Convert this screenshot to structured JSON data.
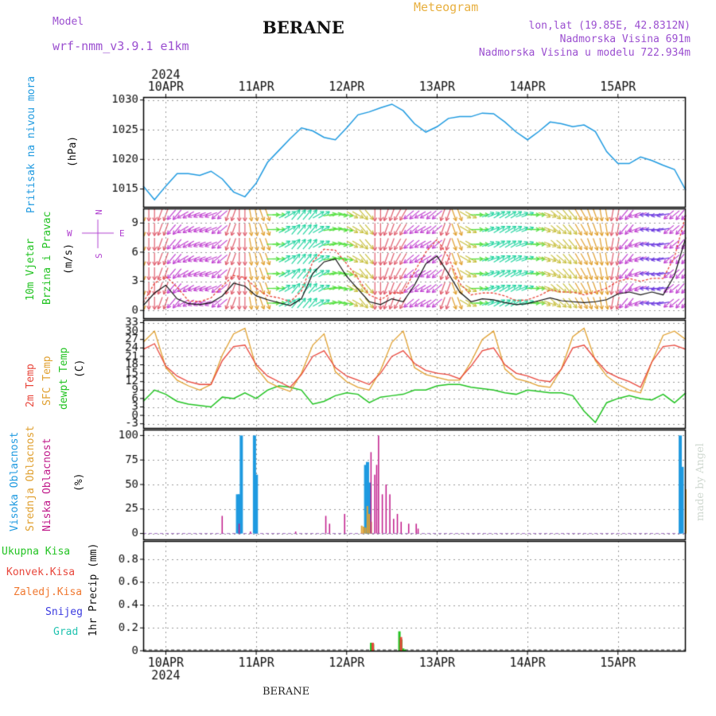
{
  "header": {
    "model_label": "Model",
    "model_name": "wrf-nmm_v3.9.1 e1km",
    "meteogram_label": "Meteogram",
    "station": "BERANE",
    "lonlat": "lon,lat (19.85E, 42.8312N)",
    "elevation": "Nadmorska Visina 691m",
    "model_elevation": "Nadmorska Visina u modelu 722.934m",
    "footer_station": "BERANE",
    "credit": "made by Angel"
  },
  "colors": {
    "pressure": "#1f9ae0",
    "temp2m": "#e8473c",
    "sfc_temp": "#e0a030",
    "dewpt": "#22c322",
    "cloud_high": "#1f9ae0",
    "cloud_mid": "#e0a030",
    "cloud_low": "#c01a8a",
    "wind_speed": "#111111",
    "wind_gust": "#e8473c",
    "precip_total": "#22c322",
    "precip_conv": "#e8473c",
    "precip_frozen": "#f07830",
    "precip_snow": "#3b3be0",
    "precip_graupel": "#22c3b0",
    "wind_axis": "#b040d0",
    "header_purple": "#9b4fd0",
    "header_orange": "#e8b040"
  },
  "time_axis": {
    "year": "2024",
    "days": [
      "10APR",
      "11APR",
      "12APR",
      "13APR",
      "14APR",
      "15APR"
    ],
    "hours_total": 144
  },
  "chart_data": [
    {
      "type": "line",
      "panel": "pressure",
      "ylabel": [
        "Pritisak na nivou mora",
        "(hPa)"
      ],
      "yticks": [
        1015,
        1020,
        1025,
        1030
      ],
      "ylim": [
        1012,
        1030.5
      ],
      "x_hours": [
        0,
        3,
        6,
        9,
        12,
        15,
        18,
        21,
        24,
        27,
        30,
        33,
        36,
        39,
        42,
        45,
        48,
        51,
        54,
        57,
        60,
        63,
        66,
        69,
        72,
        75,
        78,
        81,
        84,
        87,
        90,
        93,
        96,
        99,
        102,
        105,
        108,
        111,
        114,
        117,
        120,
        123,
        126,
        129,
        132,
        135,
        138,
        141,
        144
      ],
      "values": [
        1015.5,
        1013.2,
        1015.5,
        1017.6,
        1017.6,
        1017.3,
        1018.0,
        1016.7,
        1014.5,
        1013.7,
        1016.0,
        1019.5,
        1021.5,
        1023.5,
        1025.3,
        1024.8,
        1023.7,
        1023.3,
        1025.3,
        1027.5,
        1028.0,
        1028.7,
        1029.3,
        1028.2,
        1026.0,
        1024.6,
        1025.5,
        1026.9,
        1027.2,
        1027.2,
        1027.8,
        1027.7,
        1026.3,
        1024.6,
        1023.3,
        1024.7,
        1026.3,
        1026.0,
        1025.5,
        1025.8,
        1024.7,
        1021.3,
        1019.3,
        1019.3,
        1020.4,
        1019.8,
        1019.0,
        1018.3,
        1014.8
      ]
    },
    {
      "type": "line",
      "panel": "wind",
      "ylabel": [
        "10m Vjetar",
        "Brzina i Pravac",
        "(m/s)"
      ],
      "yticks": [
        0,
        3,
        6,
        9
      ],
      "ylim": [
        -0.8,
        10.5
      ],
      "direction_legend": [
        "N",
        "W",
        "E",
        "S"
      ],
      "x_hours": [
        0,
        3,
        6,
        9,
        12,
        15,
        18,
        21,
        24,
        27,
        30,
        33,
        36,
        39,
        42,
        45,
        48,
        51,
        54,
        57,
        60,
        63,
        66,
        69,
        72,
        75,
        78,
        81,
        84,
        87,
        90,
        93,
        96,
        99,
        102,
        105,
        108,
        111,
        114,
        117,
        120,
        123,
        126,
        129,
        132,
        135,
        138,
        141,
        144
      ],
      "series": [
        {
          "name": "speed",
          "values": [
            0.5,
            1.8,
            2.6,
            1.2,
            0.7,
            0.6,
            0.8,
            1.5,
            2.8,
            2.5,
            1.5,
            1.1,
            0.8,
            0.5,
            1.2,
            3.8,
            5.0,
            5.3,
            3.5,
            2.2,
            0.9,
            0.6,
            1.2,
            0.9,
            2.6,
            4.8,
            5.6,
            3.8,
            1.9,
            0.9,
            1.2,
            1.1,
            0.8,
            0.6,
            0.7,
            1.0,
            1.3,
            1.0,
            0.9,
            0.8,
            0.9,
            1.1,
            1.7,
            1.9,
            1.6,
            1.9,
            1.6,
            3.6,
            7.5
          ]
        },
        {
          "name": "gust",
          "values": [
            0.8,
            2.8,
            3.5,
            2.4,
            1.0,
            0.9,
            1.3,
            2.5,
            3.6,
            3.4,
            2.3,
            1.5,
            1.3,
            0.9,
            2.0,
            5.0,
            6.3,
            6.2,
            4.8,
            3.3,
            1.6,
            1.1,
            1.8,
            1.8,
            4.0,
            6.0,
            7.3,
            5.5,
            2.8,
            1.6,
            1.8,
            1.8,
            1.5,
            1.0,
            1.1,
            1.5,
            2.1,
            1.9,
            1.9,
            1.6,
            1.9,
            2.3,
            3.0,
            3.3,
            3.0,
            3.3,
            3.3,
            5.5,
            9.8
          ]
        }
      ],
      "direction_deg": [
        170,
        180,
        200,
        220,
        240,
        250,
        250,
        230,
        200,
        180,
        170,
        160,
        90,
        60,
        40,
        40,
        60,
        80,
        100,
        120,
        140,
        180,
        200,
        210,
        230,
        240,
        230,
        200,
        160,
        120,
        90,
        70,
        60,
        60,
        70,
        90,
        110,
        130,
        140,
        150,
        160,
        170,
        190,
        220,
        250,
        270,
        260,
        230,
        220
      ]
    },
    {
      "type": "line",
      "panel": "temperature",
      "ylabel": [
        "2m Temp",
        "SFC Temp",
        "dewpt Temp",
        "(C)"
      ],
      "yticks": [
        -3,
        0,
        3,
        6,
        9,
        12,
        15,
        18,
        21,
        24,
        27,
        30,
        33
      ],
      "ylim": [
        -4.5,
        34
      ],
      "x_hours": [
        0,
        3,
        6,
        9,
        12,
        15,
        18,
        21,
        24,
        27,
        30,
        33,
        36,
        39,
        42,
        45,
        48,
        51,
        54,
        57,
        60,
        63,
        66,
        69,
        72,
        75,
        78,
        81,
        84,
        87,
        90,
        93,
        96,
        99,
        102,
        105,
        108,
        111,
        114,
        117,
        120,
        123,
        126,
        129,
        132,
        135,
        138,
        141,
        144
      ],
      "series": [
        {
          "name": "2m Temp",
          "values": [
            23.5,
            25.5,
            17.5,
            14.0,
            12.0,
            11.0,
            11.0,
            19.5,
            24.5,
            25.0,
            18.0,
            14.0,
            12.0,
            10.0,
            14.5,
            21.0,
            23.0,
            17.0,
            14.0,
            12.5,
            11.0,
            15.0,
            21.0,
            23.0,
            18.5,
            16.0,
            15.0,
            14.5,
            13.0,
            17.5,
            23.0,
            24.0,
            18.0,
            15.0,
            14.0,
            12.5,
            12.0,
            16.5,
            24.0,
            25.0,
            20.0,
            15.5,
            13.5,
            12.0,
            10.0,
            19.0,
            24.5,
            25.0,
            23.5
          ]
        },
        {
          "name": "SFC Temp",
          "values": [
            26.0,
            30.0,
            17.0,
            12.5,
            10.5,
            9.0,
            11.0,
            21.5,
            29.0,
            31.0,
            17.0,
            12.0,
            10.0,
            8.5,
            15.0,
            25.0,
            29.0,
            15.5,
            12.0,
            10.0,
            9.0,
            16.0,
            26.0,
            30.0,
            17.0,
            14.5,
            13.5,
            12.5,
            12.5,
            19.0,
            27.0,
            30.0,
            16.5,
            13.0,
            12.0,
            10.5,
            10.0,
            16.5,
            28.0,
            31.0,
            19.5,
            14.0,
            11.0,
            9.0,
            8.0,
            19.0,
            28.5,
            30.0,
            27.0
          ]
        },
        {
          "name": "dewpt Temp",
          "values": [
            5.0,
            9.0,
            7.5,
            5.0,
            4.0,
            3.5,
            3.0,
            6.5,
            6.0,
            8.0,
            6.0,
            9.0,
            10.5,
            10.0,
            9.0,
            4.0,
            5.0,
            7.0,
            8.0,
            7.5,
            4.5,
            6.5,
            7.0,
            7.5,
            9.0,
            9.0,
            10.5,
            11.0,
            11.0,
            10.0,
            9.5,
            9.0,
            8.0,
            7.5,
            9.0,
            8.5,
            8.0,
            8.0,
            7.0,
            1.5,
            -2.5,
            4.5,
            6.0,
            7.0,
            6.0,
            5.5,
            7.5,
            4.5,
            8.0
          ]
        }
      ]
    },
    {
      "type": "bar",
      "panel": "clouds",
      "ylabel": [
        "Visoka Oblacnost",
        "Srednja Oblacnost",
        "Niska Oblacnost",
        "(%)"
      ],
      "yticks": [
        0,
        25,
        50,
        75,
        100
      ],
      "ylim": [
        -6,
        106
      ],
      "x_hours": [
        20.5,
        25,
        25.5,
        26,
        26.5,
        28,
        30,
        30.5,
        40,
        48,
        49,
        53,
        58,
        58.5,
        59,
        59.5,
        60,
        60.5,
        61,
        61.5,
        62,
        63,
        64,
        65,
        66,
        67,
        68,
        70,
        72,
        72.5,
        143,
        143.5,
        144
      ],
      "series": [
        {
          "name": "Visoka Oblacnost",
          "values": [
            0,
            0,
            40,
            40,
            100,
            0,
            100,
            60,
            0,
            0,
            0,
            0,
            0,
            0,
            0,
            70,
            73,
            52,
            0,
            0,
            0,
            0,
            0,
            0,
            0,
            0,
            0,
            0,
            0,
            0,
            100,
            68,
            0
          ]
        },
        {
          "name": "Srednja Oblacnost",
          "values": [
            0,
            0,
            0,
            0,
            0,
            0,
            0,
            0,
            0,
            0,
            0,
            0,
            8,
            7,
            6,
            28,
            20,
            12,
            0,
            0,
            0,
            0,
            0,
            0,
            0,
            0,
            0,
            0,
            0,
            0,
            0,
            0,
            45
          ]
        },
        {
          "name": "Niska Oblacnost",
          "values": [
            18,
            10,
            0,
            0,
            0,
            2,
            0,
            0,
            2,
            18,
            10,
            20,
            0,
            0,
            0,
            0,
            83,
            0,
            60,
            70,
            100,
            40,
            50,
            40,
            15,
            20,
            12,
            10,
            10,
            5,
            0,
            0,
            0
          ]
        }
      ]
    },
    {
      "type": "bar",
      "panel": "precipitation",
      "ylabel": [
        "1hr Precip (mm)"
      ],
      "legend": [
        "Ukupna Kisa",
        "Konvek.Kisa",
        "Zaledj.Kisa",
        "Snijeg",
        "Grad"
      ],
      "yticks": [
        0,
        0.2,
        0.4,
        0.6,
        0.8
      ],
      "ylim": [
        0,
        0.96
      ],
      "x_hours": [
        60.5,
        61,
        68,
        68.5,
        69,
        69.5
      ],
      "series": [
        {
          "name": "Ukupna Kisa",
          "values": [
            0.07,
            0.06,
            0.17,
            0.1,
            0.02,
            0.01
          ]
        },
        {
          "name": "Konvek.Kisa",
          "values": [
            0.07,
            0.0,
            0.12,
            0.0,
            0.0,
            0.0
          ]
        }
      ]
    }
  ]
}
